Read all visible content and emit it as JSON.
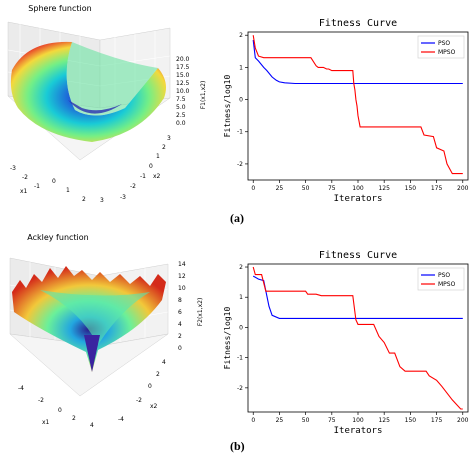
{
  "panel_labels": {
    "a": "(a)",
    "b": "(b)"
  },
  "chart_data": [
    {
      "type": "surface3d",
      "title": "Sphere function",
      "xlabel": "x1",
      "ylabel": "x2",
      "zlabel": "F1(x1,x2)",
      "xticks": [
        "-3",
        "-2",
        "-1",
        "0",
        "1",
        "2",
        "3"
      ],
      "yticks": [
        "-3",
        "-2",
        "-1",
        "0",
        "1",
        "2",
        "3"
      ],
      "zticks": [
        "0.0",
        "2.5",
        "5.0",
        "7.5",
        "10.0",
        "12.5",
        "15.0",
        "17.5",
        "20.0"
      ],
      "colormap": "jet"
    },
    {
      "type": "line",
      "title": "Fitness Curve",
      "xlabel": "Iterators",
      "ylabel": "Fitness/log10",
      "xlim": [
        -5,
        205
      ],
      "ylim": [
        -2.5,
        2.1
      ],
      "xticks": [
        0,
        25,
        50,
        75,
        100,
        125,
        150,
        175,
        200
      ],
      "yticks": [
        -2,
        -1,
        0,
        1,
        2
      ],
      "legend_position": "top-right",
      "series": [
        {
          "name": "PSO",
          "color": "#0000ff",
          "points": [
            [
              0,
              1.85
            ],
            [
              2,
              1.3
            ],
            [
              5,
              1.2
            ],
            [
              10,
              1.0
            ],
            [
              13,
              0.9
            ],
            [
              18,
              0.7
            ],
            [
              22,
              0.6
            ],
            [
              25,
              0.55
            ],
            [
              30,
              0.52
            ],
            [
              40,
              0.5
            ],
            [
              200,
              0.5
            ]
          ]
        },
        {
          "name": "MPSO",
          "color": "#ff0000",
          "points": [
            [
              0,
              2.0
            ],
            [
              2,
              1.6
            ],
            [
              5,
              1.35
            ],
            [
              10,
              1.3
            ],
            [
              55,
              1.3
            ],
            [
              60,
              1.05
            ],
            [
              62,
              1.0
            ],
            [
              67,
              1.0
            ],
            [
              70,
              0.95
            ],
            [
              72,
              0.95
            ],
            [
              75,
              0.9
            ],
            [
              95,
              0.9
            ],
            [
              96,
              0.5
            ],
            [
              97,
              0.3
            ],
            [
              98,
              0.0
            ],
            [
              99,
              -0.2
            ],
            [
              100,
              -0.5
            ],
            [
              102,
              -0.85
            ],
            [
              160,
              -0.85
            ],
            [
              163,
              -1.1
            ],
            [
              172,
              -1.15
            ],
            [
              175,
              -1.5
            ],
            [
              182,
              -1.6
            ],
            [
              185,
              -2.0
            ],
            [
              190,
              -2.3
            ],
            [
              200,
              -2.3
            ]
          ]
        }
      ]
    },
    {
      "type": "surface3d",
      "title": "Ackley function",
      "xlabel": "x1",
      "ylabel": "x2",
      "zlabel": "F2(x1,x2)",
      "xticks": [
        "-4",
        "-2",
        "0",
        "2",
        "4"
      ],
      "yticks": [
        "-4",
        "-2",
        "0",
        "2",
        "4"
      ],
      "zticks": [
        "0",
        "2",
        "4",
        "6",
        "8",
        "10",
        "12",
        "14"
      ],
      "colormap": "jet"
    },
    {
      "type": "line",
      "title": "Fitness Curve",
      "xlabel": "Iterators",
      "ylabel": "Fitness/log10",
      "xlim": [
        -5,
        205
      ],
      "ylim": [
        -2.8,
        2.1
      ],
      "xticks": [
        0,
        25,
        50,
        75,
        100,
        125,
        150,
        175,
        200
      ],
      "yticks": [
        -2,
        -1,
        0,
        1,
        2
      ],
      "legend_position": "top-right",
      "series": [
        {
          "name": "PSO",
          "color": "#0000ff",
          "points": [
            [
              0,
              1.7
            ],
            [
              5,
              1.6
            ],
            [
              10,
              1.55
            ],
            [
              15,
              0.7
            ],
            [
              18,
              0.4
            ],
            [
              25,
              0.3
            ],
            [
              40,
              0.3
            ],
            [
              100,
              0.3
            ],
            [
              200,
              0.3
            ]
          ]
        },
        {
          "name": "MPSO",
          "color": "#ff0000",
          "points": [
            [
              0,
              2.0
            ],
            [
              2,
              1.75
            ],
            [
              8,
              1.75
            ],
            [
              12,
              1.2
            ],
            [
              50,
              1.2
            ],
            [
              52,
              1.1
            ],
            [
              60,
              1.1
            ],
            [
              65,
              1.05
            ],
            [
              95,
              1.05
            ],
            [
              98,
              0.25
            ],
            [
              100,
              0.1
            ],
            [
              115,
              0.1
            ],
            [
              120,
              -0.3
            ],
            [
              125,
              -0.5
            ],
            [
              130,
              -0.85
            ],
            [
              135,
              -0.85
            ],
            [
              140,
              -1.3
            ],
            [
              145,
              -1.45
            ],
            [
              165,
              -1.45
            ],
            [
              168,
              -1.6
            ],
            [
              175,
              -1.75
            ],
            [
              180,
              -1.95
            ],
            [
              190,
              -2.4
            ],
            [
              198,
              -2.7
            ],
            [
              200,
              -2.7
            ]
          ]
        }
      ]
    }
  ]
}
